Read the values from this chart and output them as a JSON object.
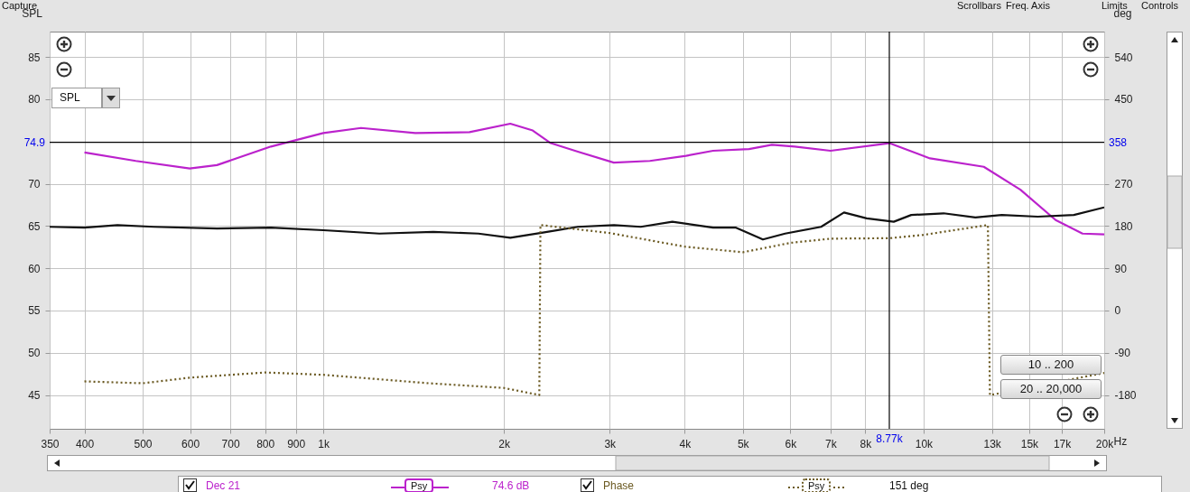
{
  "chart_data": {
    "type": "line",
    "ylabel": "SPL",
    "y2label": "deg",
    "log": "x",
    "grid": true,
    "legend": "bottom",
    "marker": "none",
    "xlim": [
      350,
      20000
    ],
    "xticks": [
      350,
      400,
      500,
      600,
      700,
      800,
      900,
      {
        "value": 1000,
        "label": "1k"
      },
      {
        "value": 2000,
        "label": "2k"
      },
      {
        "value": 3000,
        "label": "3k"
      },
      {
        "value": 4000,
        "label": "4k"
      },
      {
        "value": 5000,
        "label": "5k"
      },
      {
        "value": 6000,
        "label": "6k"
      },
      {
        "value": 7000,
        "label": "7k"
      },
      {
        "value": 8000,
        "label": "8k"
      },
      {
        "value": 10000,
        "label": "10k"
      },
      {
        "value": 13000,
        "label": "13k"
      },
      {
        "value": 15000,
        "label": "15k"
      },
      {
        "value": 17000,
        "label": "17k"
      },
      {
        "value": 20000,
        "label": "20k"
      }
    ],
    "xlabel": "Hz",
    "ylim": [
      41,
      88
    ],
    "yticks": [
      45,
      50,
      55,
      60,
      65,
      70,
      80,
      85
    ],
    "y2lim": [
      -252,
      594
    ],
    "y2ticks": [
      -180,
      -90,
      0,
      90,
      180,
      270,
      450,
      540
    ],
    "series": [
      {
        "name": "Dec 21",
        "color": "#bb22cc",
        "line_style": "solid",
        "x": [
          400,
          487,
          599,
          665,
          818,
          1000,
          1156,
          1423,
          1752,
          2049,
          2233,
          2393,
          2655,
          3047,
          3500,
          4020,
          4460,
          5120,
          5590,
          6100,
          7000,
          8770,
          10250,
          12600,
          14500,
          16600,
          18400,
          20000
        ],
        "values": [
          73.7,
          72.7,
          71.8,
          72.2,
          74.4,
          76.0,
          76.6,
          76.0,
          76.1,
          77.1,
          76.3,
          74.8,
          73.8,
          72.5,
          72.7,
          73.3,
          73.9,
          74.1,
          74.6,
          74.4,
          73.9,
          74.8,
          73.0,
          72.0,
          69.3,
          65.7,
          64.1,
          64.0
        ]
      },
      {
        "color": "#111111",
        "line_style": "solid",
        "x": [
          350,
          400,
          454,
          522,
          665,
          818,
          1000,
          1240,
          1525,
          1813,
          2049,
          2310,
          2655,
          3050,
          3380,
          3815,
          4460,
          4870,
          5400,
          5880,
          6750,
          7370,
          8040,
          8920,
          9540,
          10800,
          12200,
          13500,
          15500,
          17800,
          20000
        ],
        "values": [
          64.9,
          64.8,
          65.1,
          64.9,
          64.7,
          64.8,
          64.5,
          64.1,
          64.3,
          64.1,
          63.6,
          64.2,
          64.9,
          65.1,
          64.9,
          65.5,
          64.8,
          64.8,
          63.4,
          64.1,
          64.9,
          66.6,
          65.9,
          65.5,
          66.3,
          66.5,
          66.0,
          66.3,
          66.1,
          66.3,
          67.2
        ]
      },
      {
        "name": "Phase",
        "color": "#6b5a22",
        "line_style": "dotted",
        "axis": "y2",
        "x": [
          400,
          500,
          600,
          800,
          1000,
          1500,
          2000,
          2290,
          2300,
          3000,
          4000,
          5000,
          6000,
          7000,
          8770,
          10000,
          12800,
          12900,
          13300,
          20000
        ],
        "values": [
          -151,
          -155,
          -143,
          -132,
          -137,
          -155,
          -165,
          -180,
          182,
          165,
          136,
          124,
          144,
          153,
          154,
          161,
          182,
          -180,
          -177,
          -133
        ]
      }
    ],
    "ref_lines": [
      {
        "axis": "y",
        "value": 74.9,
        "label": "74.9"
      },
      {
        "axis": "x",
        "value": 8770,
        "label": "8.77k"
      }
    ],
    "annotations": [
      {
        "text": "358",
        "x": 20000,
        "y": 74.9
      },
      "Capture",
      "Scrollbars",
      "Freq. Axis",
      "Limits",
      "Controls",
      "SPL",
      "10 .. 200",
      "20 .. 20,000",
      "Psy",
      "74.6 dB",
      "Psy",
      "151 deg"
    ]
  }
}
